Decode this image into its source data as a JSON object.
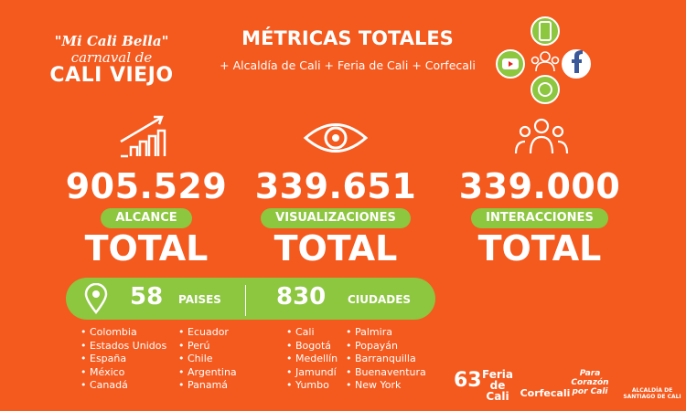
{
  "logo": {
    "line1": "\"Mi Cali Bella\"",
    "line2": "carnaval de",
    "line3": "CALI VIEJO"
  },
  "header": {
    "title": "MÉTRICAS TOTALES",
    "subtitle": "+ Alcaldía de Cali + Feria de Cali + Corfecali"
  },
  "metrics": [
    {
      "value": "905.529",
      "label": "ALCANCE",
      "total": "TOTAL"
    },
    {
      "value": "339.651",
      "label": "VISUALIZACIONES",
      "total": "TOTAL"
    },
    {
      "value": "339.000",
      "label": "INTERACCIONES",
      "total": "TOTAL"
    }
  ],
  "reach": {
    "countries_count": "58",
    "countries_label": "PAISES",
    "cities_count": "830",
    "cities_label": "CIUDADES"
  },
  "countries": [
    [
      "Colombia",
      "Estados Unidos",
      "España",
      "México",
      "Canadá"
    ],
    [
      "Ecuador",
      "Perú",
      "Chile",
      "Argentina",
      "Panamá"
    ]
  ],
  "cities": [
    [
      "Cali",
      "Bogotá",
      "Medellín",
      "Jamundí",
      "Yumbo"
    ],
    [
      "Palmira",
      "Popayán",
      "Barranquilla",
      "Buenaventura",
      "New York"
    ]
  ],
  "footer_logos": [
    "63",
    "Feria de Cali",
    "Corfecali",
    "Para Corazón por Cali",
    "ALCALDÍA DE SANTIAGO DE CALI"
  ]
}
